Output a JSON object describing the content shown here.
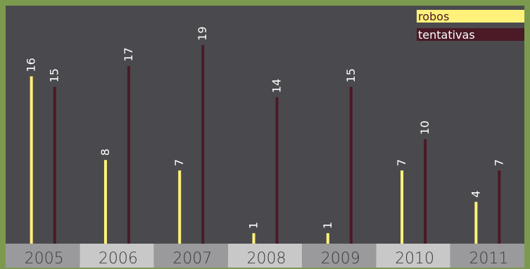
{
  "chart_data": {
    "type": "bar",
    "categories": [
      "2005",
      "2006",
      "2007",
      "2008",
      "2009",
      "2010",
      "2011"
    ],
    "series": [
      {
        "name": "robos",
        "values": [
          16,
          8,
          7,
          1,
          1,
          7,
          4
        ],
        "color": "#fff27a"
      },
      {
        "name": "tentativas",
        "values": [
          15,
          17,
          19,
          14,
          15,
          10,
          7
        ],
        "color": "#4a1a26"
      }
    ],
    "ylim": [
      0,
      20
    ],
    "legend_position": "top-right",
    "grid": false,
    "background": "#4a4a4e",
    "border_color": "#7c9a4e",
    "tick_band_colors": [
      "#9a9a9c",
      "#c8c8c8"
    ]
  }
}
